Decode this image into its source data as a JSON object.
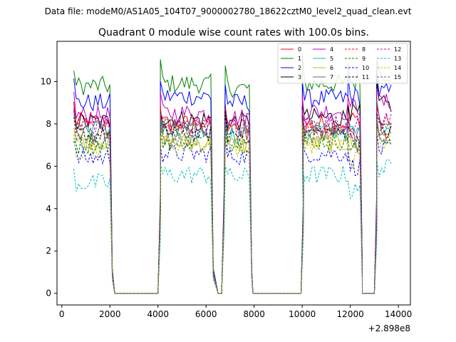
{
  "chart_data": {
    "type": "line",
    "suptitle": "Data file: modeM0/AS1A05_104T07_9000002780_18622cztM0_level2_quad_clean.evt",
    "title": "Quadrant 0 module wise count rates with 100.0s bins.",
    "xlabel": "",
    "ylabel": "",
    "x_offset_label": "+2.898e8",
    "xlim": [
      -200,
      14500
    ],
    "ylim": [
      -0.55,
      11.9
    ],
    "x_ticks": [
      0,
      2000,
      4000,
      6000,
      8000,
      10000,
      12000,
      14000
    ],
    "y_ticks": [
      0,
      2,
      4,
      6,
      8,
      10
    ],
    "legend_position": "top-right",
    "segments": [
      {
        "start": 500,
        "end": 2000,
        "drop_to": 2200
      },
      {
        "start": 4100,
        "end": 6200,
        "drop_to": 6500
      },
      {
        "start": 6800,
        "end": 7800,
        "drop_to": 7950
      },
      {
        "start": 10000,
        "end": 11900,
        "drop_to": null
      },
      {
        "start": 11900,
        "end": 12400,
        "drop_to": 12500
      },
      {
        "start": 13100,
        "end": 13700,
        "drop_to": null
      }
    ],
    "gaps": [
      [
        2200,
        4000
      ],
      [
        6500,
        6650
      ],
      [
        7950,
        9950
      ],
      [
        12500,
        13000
      ]
    ],
    "series": [
      {
        "name": "0",
        "color": "#ff0000",
        "dash": false,
        "levels": [
          8.1,
          8.0,
          7.9,
          8.0,
          8.2,
          7.5
        ]
      },
      {
        "name": "1",
        "color": "#008000",
        "dash": false,
        "levels": [
          9.8,
          9.9,
          9.7,
          9.9,
          10.0,
          10.4
        ]
      },
      {
        "name": "2",
        "color": "#0000ff",
        "dash": false,
        "levels": [
          9.0,
          9.3,
          9.0,
          9.2,
          9.3,
          9.5
        ]
      },
      {
        "name": "3",
        "color": "#000000",
        "dash": false,
        "levels": [
          8.1,
          8.2,
          8.1,
          8.3,
          8.5,
          8.9
        ]
      },
      {
        "name": "4",
        "color": "#bf00bf",
        "dash": false,
        "levels": [
          8.4,
          8.5,
          8.3,
          8.6,
          8.8,
          9.0
        ]
      },
      {
        "name": "5",
        "color": "#00bfbf",
        "dash": false,
        "levels": [
          7.8,
          7.6,
          7.5,
          7.7,
          7.6,
          7.9
        ]
      },
      {
        "name": "6",
        "color": "#bfbf00",
        "dash": false,
        "levels": [
          7.2,
          7.1,
          7.0,
          7.1,
          7.0,
          7.3
        ]
      },
      {
        "name": "7",
        "color": "#666666",
        "dash": false,
        "levels": [
          7.6,
          7.8,
          7.6,
          7.8,
          7.5,
          8.1
        ]
      },
      {
        "name": "8",
        "color": "#ff0000",
        "dash": true,
        "levels": [
          7.9,
          7.8,
          7.7,
          7.8,
          7.6,
          8.0
        ]
      },
      {
        "name": "9",
        "color": "#008000",
        "dash": true,
        "levels": [
          7.0,
          7.2,
          7.1,
          7.2,
          6.8,
          7.4
        ]
      },
      {
        "name": "10",
        "color": "#0000ff",
        "dash": true,
        "levels": [
          6.4,
          6.6,
          6.5,
          6.6,
          6.0,
          6.8
        ]
      },
      {
        "name": "11",
        "color": "#000000",
        "dash": true,
        "levels": [
          7.5,
          7.6,
          7.5,
          7.6,
          7.3,
          7.7
        ]
      },
      {
        "name": "12",
        "color": "#bf00bf",
        "dash": true,
        "levels": [
          8.0,
          7.9,
          7.8,
          8.0,
          7.8,
          8.2
        ]
      },
      {
        "name": "13",
        "color": "#00bfbf",
        "dash": true,
        "levels": [
          5.2,
          5.6,
          5.5,
          5.6,
          4.8,
          5.9
        ]
      },
      {
        "name": "14",
        "color": "#bfbf00",
        "dash": true,
        "levels": [
          6.8,
          7.0,
          6.9,
          7.0,
          6.3,
          7.1
        ]
      },
      {
        "name": "15",
        "color": "#666666",
        "dash": true,
        "levels": [
          7.3,
          7.4,
          7.3,
          7.4,
          7.0,
          7.6
        ]
      }
    ]
  }
}
